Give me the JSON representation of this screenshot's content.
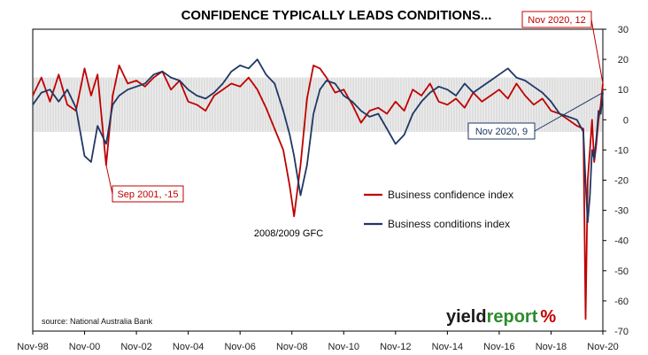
{
  "chart_data": {
    "type": "line",
    "title": "CONFIDENCE TYPICALLY LEADS CONDITIONS...",
    "ylim": [
      -70,
      30
    ],
    "y_ticks": [
      "30",
      "20",
      "10",
      "0",
      "-10",
      "-20",
      "-30",
      "-40",
      "-50",
      "-60",
      "-70"
    ],
    "x_ticks": [
      "Nov-98",
      "Nov-00",
      "Nov-02",
      "Nov-04",
      "Nov-06",
      "Nov-08",
      "Nov-10",
      "Nov-12",
      "Nov-14",
      "Nov-16",
      "Nov-18",
      "Nov-20"
    ],
    "x_range": [
      "1998-11",
      "2020-11"
    ],
    "grid": false,
    "legend_position": "center-right",
    "series": [
      {
        "name": "Business confidence index",
        "color": "#c00000",
        "x": [
          "1998-11",
          "1999-03",
          "1999-07",
          "1999-11",
          "2000-03",
          "2000-07",
          "2000-11",
          "2001-02",
          "2001-05",
          "2001-09",
          "2001-12",
          "2002-03",
          "2002-07",
          "2002-11",
          "2003-03",
          "2003-07",
          "2003-11",
          "2004-03",
          "2004-07",
          "2004-11",
          "2005-03",
          "2005-07",
          "2005-11",
          "2006-03",
          "2006-07",
          "2006-11",
          "2007-03",
          "2007-07",
          "2007-11",
          "2008-03",
          "2008-07",
          "2008-10",
          "2008-12",
          "2009-03",
          "2009-06",
          "2009-09",
          "2009-12",
          "2010-03",
          "2010-07",
          "2010-11",
          "2011-03",
          "2011-07",
          "2011-11",
          "2012-03",
          "2012-07",
          "2012-11",
          "2013-03",
          "2013-07",
          "2013-11",
          "2014-03",
          "2014-07",
          "2014-11",
          "2015-03",
          "2015-07",
          "2015-11",
          "2016-03",
          "2016-07",
          "2016-11",
          "2017-03",
          "2017-07",
          "2017-11",
          "2018-03",
          "2018-07",
          "2018-11",
          "2019-03",
          "2019-07",
          "2019-11",
          "2020-02",
          "2020-03",
          "2020-04",
          "2020-05",
          "2020-06",
          "2020-07",
          "2020-08",
          "2020-09",
          "2020-10",
          "2020-11"
        ],
        "values": [
          8,
          14,
          6,
          15,
          5,
          3,
          17,
          8,
          15,
          -15,
          8,
          18,
          12,
          13,
          11,
          14,
          16,
          10,
          13,
          6,
          5,
          3,
          8,
          10,
          12,
          11,
          14,
          10,
          4,
          -3,
          -10,
          -22,
          -32,
          -15,
          7,
          18,
          17,
          14,
          9,
          10,
          5,
          -1,
          3,
          4,
          2,
          6,
          3,
          10,
          8,
          12,
          6,
          5,
          7,
          4,
          9,
          6,
          8,
          10,
          7,
          12,
          8,
          5,
          7,
          3,
          2,
          0,
          -2,
          -3,
          -66,
          -20,
          -10,
          0,
          -14,
          -8,
          0,
          5,
          12
        ]
      },
      {
        "name": "Business conditions index",
        "color": "#1f3864",
        "x": [
          "1998-11",
          "1999-03",
          "1999-07",
          "1999-11",
          "2000-03",
          "2000-07",
          "2000-11",
          "2001-02",
          "2001-05",
          "2001-09",
          "2001-12",
          "2002-03",
          "2002-07",
          "2002-11",
          "2003-03",
          "2003-07",
          "2003-11",
          "2004-03",
          "2004-07",
          "2004-11",
          "2005-03",
          "2005-07",
          "2005-11",
          "2006-03",
          "2006-07",
          "2006-11",
          "2007-03",
          "2007-07",
          "2007-11",
          "2008-03",
          "2008-07",
          "2008-10",
          "2008-12",
          "2009-03",
          "2009-06",
          "2009-09",
          "2009-12",
          "2010-03",
          "2010-07",
          "2010-11",
          "2011-03",
          "2011-07",
          "2011-11",
          "2012-03",
          "2012-07",
          "2012-11",
          "2013-03",
          "2013-07",
          "2013-11",
          "2014-03",
          "2014-07",
          "2014-11",
          "2015-03",
          "2015-07",
          "2015-11",
          "2016-03",
          "2016-07",
          "2016-11",
          "2017-03",
          "2017-07",
          "2017-11",
          "2018-03",
          "2018-07",
          "2018-11",
          "2019-03",
          "2019-07",
          "2019-11",
          "2020-02",
          "2020-03",
          "2020-04",
          "2020-05",
          "2020-06",
          "2020-07",
          "2020-08",
          "2020-09",
          "2020-10",
          "2020-11"
        ],
        "values": [
          5,
          9,
          10,
          6,
          10,
          4,
          -12,
          -14,
          -2,
          -8,
          5,
          8,
          10,
          11,
          12,
          15,
          16,
          14,
          13,
          10,
          8,
          7,
          9,
          12,
          16,
          18,
          17,
          20,
          15,
          12,
          3,
          -5,
          -12,
          -25,
          -15,
          2,
          10,
          13,
          12,
          8,
          6,
          3,
          1,
          2,
          -3,
          -8,
          -5,
          2,
          6,
          9,
          11,
          10,
          8,
          12,
          9,
          11,
          13,
          15,
          17,
          14,
          13,
          11,
          9,
          6,
          2,
          1,
          0,
          -4,
          -21,
          -34,
          -25,
          -10,
          -13,
          -6,
          3,
          2,
          9
        ]
      }
    ],
    "annotations": [
      {
        "label": "Sep 2001, -15",
        "x": "2001-09",
        "y": -15,
        "color": "#c00000"
      },
      {
        "label": "Nov 2020, 12",
        "x": "2020-11",
        "y": 12,
        "color": "#c00000"
      },
      {
        "label": "Nov 2020, 9",
        "x": "2020-11",
        "y": 9,
        "color": "#1f3864"
      },
      {
        "label": "2008/2009 GFC",
        "x": "2008-12",
        "y": -32,
        "color": "#000000"
      }
    ],
    "shaded_band": [
      -4,
      14
    ]
  },
  "source": "source: National Australia Bank",
  "logo": {
    "part1": "yield",
    "part2": "report",
    "symbol": "%"
  },
  "colors": {
    "logo_dark": "#1a1a1a",
    "logo_green": "#2e8b2e",
    "logo_red": "#c00000"
  }
}
